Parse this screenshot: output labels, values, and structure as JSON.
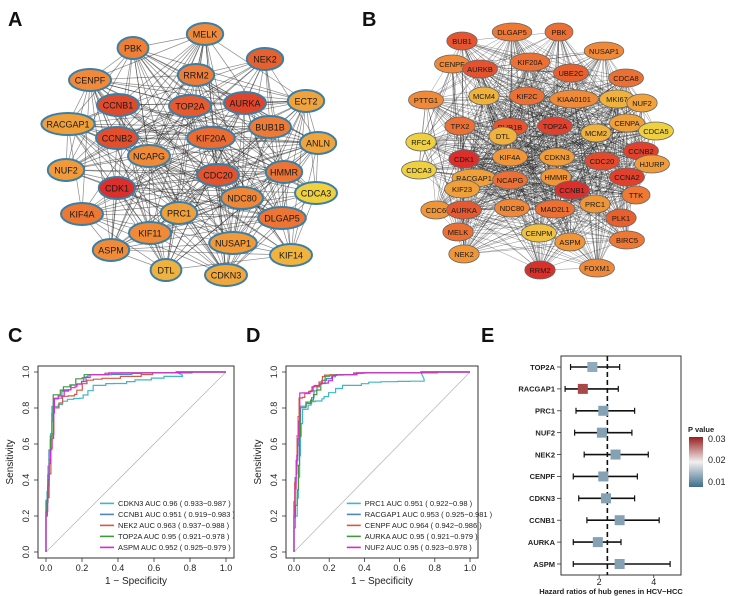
{
  "panels": {
    "A": "A",
    "B": "B",
    "C": "C",
    "D": "D",
    "E": "E"
  },
  "networkA": {
    "nodes": [
      {
        "label": "MELK",
        "color": "#ef8a3c"
      },
      {
        "label": "PBK",
        "color": "#f07f36"
      },
      {
        "label": "NEK2",
        "color": "#e8602e"
      },
      {
        "label": "RRM2",
        "color": "#ee7c38"
      },
      {
        "label": "CENPF",
        "color": "#f08a3a"
      },
      {
        "label": "ECT2",
        "color": "#f0a23c"
      },
      {
        "label": "CCNB1",
        "color": "#e04a2c"
      },
      {
        "label": "TOP2A",
        "color": "#e55a2e"
      },
      {
        "label": "AURKA",
        "color": "#e0452c"
      },
      {
        "label": "RACGAP1",
        "color": "#f0a03a"
      },
      {
        "label": "BUB1B",
        "color": "#ee7a36"
      },
      {
        "label": "CCNB2",
        "color": "#e34e2d"
      },
      {
        "label": "KIF20A",
        "color": "#ea6c32"
      },
      {
        "label": "ANLN",
        "color": "#f0a43c"
      },
      {
        "label": "NCAPG",
        "color": "#ee8a38"
      },
      {
        "label": "NUF2",
        "color": "#f09a3a"
      },
      {
        "label": "CDC20",
        "color": "#e4522e"
      },
      {
        "label": "HMMR",
        "color": "#ec7434"
      },
      {
        "label": "CDK1",
        "color": "#dc2e2a"
      },
      {
        "label": "CDCA3",
        "color": "#efd040"
      },
      {
        "label": "NDC80",
        "color": "#ee8838"
      },
      {
        "label": "KIF4A",
        "color": "#ec7834"
      },
      {
        "label": "PRC1",
        "color": "#f0a03a"
      },
      {
        "label": "DLGAP5",
        "color": "#ec7434"
      },
      {
        "label": "KIF11",
        "color": "#ee8a38"
      },
      {
        "label": "NUSAP1",
        "color": "#f09a3a"
      },
      {
        "label": "ASPM",
        "color": "#f08c38"
      },
      {
        "label": "KIF14",
        "color": "#f0b43e"
      },
      {
        "label": "DTL",
        "color": "#f0b23e"
      },
      {
        "label": "CDKN3",
        "color": "#f0a83c"
      }
    ]
  },
  "networkB": {
    "nodes": [
      {
        "label": "BUB1",
        "color": "#e65430"
      },
      {
        "label": "DLGAP5",
        "color": "#ee7834"
      },
      {
        "label": "PBK",
        "color": "#ec6e32"
      },
      {
        "label": "NUSAP1",
        "color": "#f08a38"
      },
      {
        "label": "CENPF",
        "color": "#f08a38"
      },
      {
        "label": "AURKB",
        "color": "#e45230"
      },
      {
        "label": "KIF20A",
        "color": "#ec7034"
      },
      {
        "label": "UBE2C",
        "color": "#e8602e"
      },
      {
        "label": "CDCA8",
        "color": "#ec7034"
      },
      {
        "label": "PTTG1",
        "color": "#f08a38"
      },
      {
        "label": "MCM4",
        "color": "#f0b23e"
      },
      {
        "label": "KIF2C",
        "color": "#ec7034"
      },
      {
        "label": "KIAA0101",
        "color": "#ef8a38"
      },
      {
        "label": "MKI67",
        "color": "#f0b23e"
      },
      {
        "label": "NUF2",
        "color": "#f0a23c"
      },
      {
        "label": "TPX2",
        "color": "#ec7034"
      },
      {
        "label": "BUB1B",
        "color": "#e65430"
      },
      {
        "label": "TOP2A",
        "color": "#e0402c"
      },
      {
        "label": "MCM2",
        "color": "#f0b23e"
      },
      {
        "label": "CENPA",
        "color": "#f0a03a"
      },
      {
        "label": "RFC4",
        "color": "#efd040"
      },
      {
        "label": "DTL",
        "color": "#f0b23e"
      },
      {
        "label": "CDCA5",
        "color": "#efd040"
      },
      {
        "label": "CDK1",
        "color": "#dc2e2a"
      },
      {
        "label": "KIF4A",
        "color": "#f09638"
      },
      {
        "label": "CDKN3",
        "color": "#f09c3a"
      },
      {
        "label": "CDC20",
        "color": "#e24a2d"
      },
      {
        "label": "CCNB2",
        "color": "#e0402c"
      },
      {
        "label": "HJURP",
        "color": "#f09c3a"
      },
      {
        "label": "CDCA3",
        "color": "#efd040"
      },
      {
        "label": "RACGAP1",
        "color": "#f0a03a"
      },
      {
        "label": "HMMR",
        "color": "#f09638"
      },
      {
        "label": "CCNA2",
        "color": "#e0402c"
      },
      {
        "label": "KIF23",
        "color": "#f0a03a"
      },
      {
        "label": "NCAPG",
        "color": "#ec7034"
      },
      {
        "label": "CCNB1",
        "color": "#dc2e2a"
      },
      {
        "label": "TTK",
        "color": "#ee7834"
      },
      {
        "label": "CDC6",
        "color": "#f09638"
      },
      {
        "label": "NDC80",
        "color": "#f08838"
      },
      {
        "label": "PRC1",
        "color": "#f09638"
      },
      {
        "label": "AURKA",
        "color": "#e55830"
      },
      {
        "label": "MAD2L1",
        "color": "#ec7034"
      },
      {
        "label": "PLK1",
        "color": "#e8602e"
      },
      {
        "label": "MELK",
        "color": "#ec7034"
      },
      {
        "label": "CENPM",
        "color": "#f0c040"
      },
      {
        "label": "ASPM",
        "color": "#f09638"
      },
      {
        "label": "BIRC5",
        "color": "#ee7834"
      },
      {
        "label": "NEK2",
        "color": "#f09638"
      },
      {
        "label": "RRM2",
        "color": "#d8302a"
      },
      {
        "label": "FOXM1",
        "color": "#f08a38"
      }
    ]
  },
  "chart_data": [
    {
      "type": "line",
      "panel": "C",
      "xlabel": "1 − Specificity",
      "ylabel": "Sensitivity",
      "xlim": [
        0,
        1
      ],
      "ylim": [
        0,
        1
      ],
      "xticks": [
        "0.0",
        "0.2",
        "0.4",
        "0.6",
        "0.8",
        "1.0"
      ],
      "yticks": [
        "0.0",
        "0.2",
        "0.4",
        "0.6",
        "0.8",
        "1.0"
      ],
      "series": [
        {
          "name": "CDKN3 AUC 0.96 ( 0.933−0.987 )",
          "color": "#3fb6c9"
        },
        {
          "name": "CCNB1 AUC 0.951 ( 0.919−0.983 )",
          "color": "#4f86c6"
        },
        {
          "name": "NEK2 AUC 0.963 ( 0.937−0.988 )",
          "color": "#d05a4a"
        },
        {
          "name": "TOP2A AUC 0.95 ( 0.921−0.978 )",
          "color": "#3e9a3a"
        },
        {
          "name": "ASPM AUC 0.952 ( 0.925−0.979 )",
          "color": "#d62ad6"
        }
      ]
    },
    {
      "type": "line",
      "panel": "D",
      "xlabel": "1 − Specificity",
      "ylabel": "Sensitivity",
      "xlim": [
        0,
        1
      ],
      "ylim": [
        0,
        1
      ],
      "xticks": [
        "0.0",
        "0.2",
        "0.4",
        "0.6",
        "0.8",
        "1.0"
      ],
      "yticks": [
        "0.0",
        "0.2",
        "0.4",
        "0.6",
        "0.8",
        "1.0"
      ],
      "series": [
        {
          "name": "PRC1 AUC 0.951 ( 0.922−0.98 )",
          "color": "#3fb6c9"
        },
        {
          "name": "RACGAP1 AUC 0.953 ( 0.925−0.981 )",
          "color": "#4f86c6"
        },
        {
          "name": "CENPF AUC 0.964 ( 0.942−0.986 )",
          "color": "#d05a4a"
        },
        {
          "name": "AURKA AUC 0.95 ( 0.921−0.979 )",
          "color": "#3e9a3a"
        },
        {
          "name": "NUF2 AUC 0.95 ( 0.923−0.978 )",
          "color": "#d62ad6"
        }
      ]
    },
    {
      "type": "scatter",
      "panel": "E",
      "xlabel": "Hazard ratios of hub genes in HCV−HCC",
      "xlim": [
        0.6,
        5.0
      ],
      "xticks": [
        "2",
        "4"
      ],
      "reference_line": 2.3,
      "legend_title": "P value",
      "legend_ticks": [
        "0.03",
        "0.02",
        "0.01"
      ],
      "rows": [
        {
          "gene": "TOP2A",
          "hr": 1.75,
          "low": 0.95,
          "high": 2.75,
          "p": 0.012
        },
        {
          "gene": "RACGAP1",
          "hr": 1.4,
          "low": 0.75,
          "high": 2.7,
          "p": 0.032
        },
        {
          "gene": "PRC1",
          "hr": 2.15,
          "low": 1.15,
          "high": 3.3,
          "p": 0.011
        },
        {
          "gene": "NUF2",
          "hr": 2.1,
          "low": 1.1,
          "high": 3.2,
          "p": 0.011
        },
        {
          "gene": "NEK2",
          "hr": 2.6,
          "low": 1.45,
          "high": 3.8,
          "p": 0.011
        },
        {
          "gene": "CENPF",
          "hr": 2.15,
          "low": 1.05,
          "high": 3.4,
          "p": 0.011
        },
        {
          "gene": "CDKN3",
          "hr": 2.25,
          "low": 1.25,
          "high": 3.3,
          "p": 0.011
        },
        {
          "gene": "CCNB1",
          "hr": 2.75,
          "low": 1.55,
          "high": 4.2,
          "p": 0.011
        },
        {
          "gene": "AURKA",
          "hr": 1.95,
          "low": 1.05,
          "high": 2.8,
          "p": 0.011
        },
        {
          "gene": "ASPM",
          "hr": 2.75,
          "low": 1.05,
          "high": 4.6,
          "p": 0.011
        }
      ]
    }
  ]
}
